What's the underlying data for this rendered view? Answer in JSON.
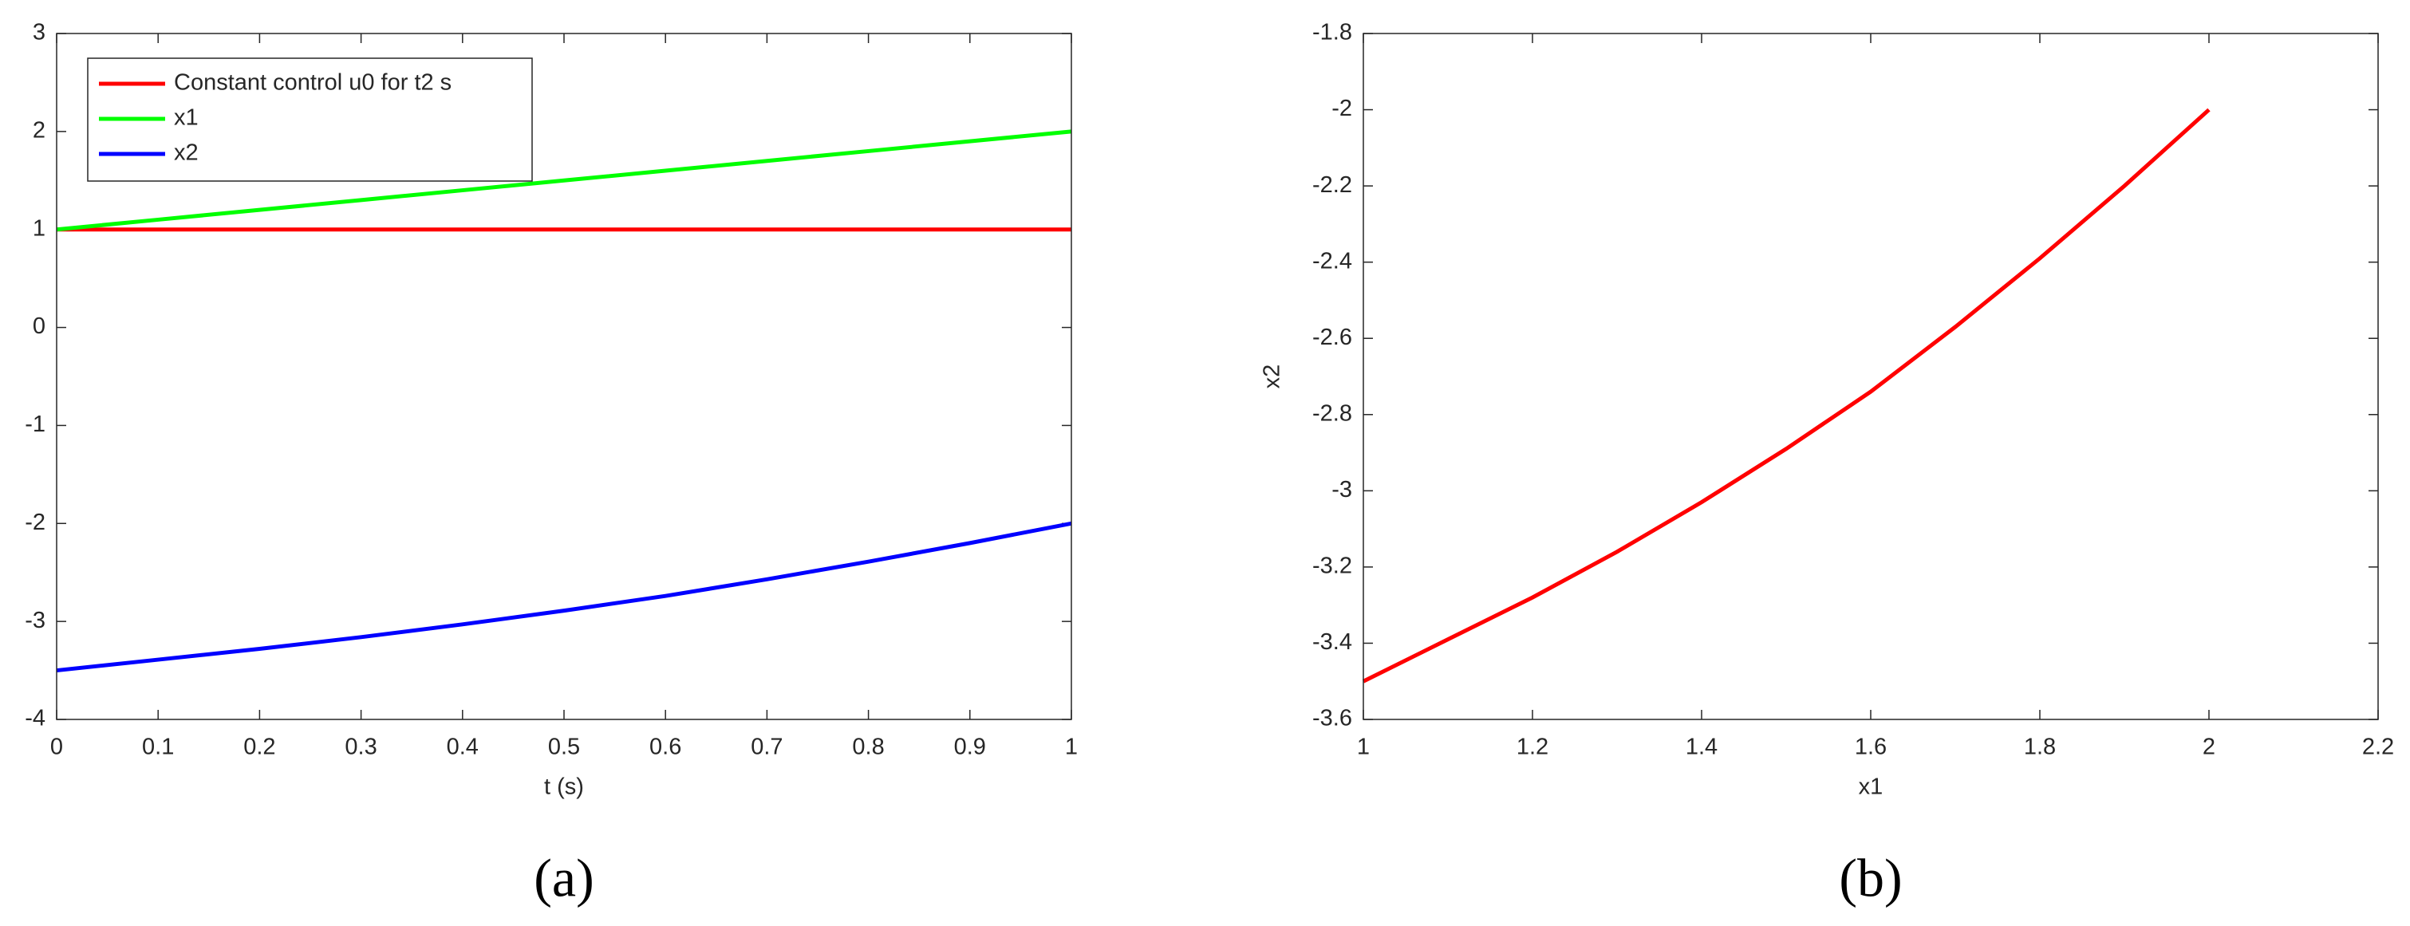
{
  "chart_data": [
    {
      "type": "line",
      "caption": "(a)",
      "xlabel": "t (s)",
      "x": [
        0,
        0.1,
        0.2,
        0.3,
        0.4,
        0.5,
        0.6,
        0.7,
        0.8,
        0.9,
        1
      ],
      "series": [
        {
          "name": "Constant control u0 for t2 s",
          "color": "#ff0000",
          "values": [
            1,
            1,
            1,
            1,
            1,
            1,
            1,
            1,
            1,
            1,
            1
          ]
        },
        {
          "name": "x1",
          "color": "#00ff00",
          "values": [
            1,
            1.1,
            1.2,
            1.3,
            1.4,
            1.5,
            1.6,
            1.7,
            1.8,
            1.9,
            2
          ]
        },
        {
          "name": "x2",
          "color": "#0000ff",
          "values": [
            -3.5,
            -3.39,
            -3.28,
            -3.16,
            -3.03,
            -2.89,
            -2.74,
            -2.57,
            -2.39,
            -2.2,
            -2
          ]
        }
      ],
      "xlim": [
        0,
        1
      ],
      "xticks": [
        0,
        0.1,
        0.2,
        0.3,
        0.4,
        0.5,
        0.6,
        0.7,
        0.8,
        0.9,
        1
      ],
      "ylim": [
        -4,
        3
      ],
      "yticks": [
        -4,
        -3,
        -2,
        -1,
        0,
        1,
        2,
        3
      ],
      "legend": "upper left"
    },
    {
      "type": "line",
      "caption": "(b)",
      "xlabel": "x1",
      "ylabel": "x2",
      "x": [
        1,
        1.1,
        1.2,
        1.3,
        1.4,
        1.5,
        1.6,
        1.7,
        1.8,
        1.9,
        2
      ],
      "series": [
        {
          "color": "#ff0000",
          "values": [
            -3.5,
            -3.39,
            -3.28,
            -3.16,
            -3.03,
            -2.89,
            -2.74,
            -2.57,
            -2.39,
            -2.2,
            -2
          ]
        }
      ],
      "xlim": [
        1,
        2.2
      ],
      "xticks": [
        1,
        1.2,
        1.4,
        1.6,
        1.8,
        2,
        2.2
      ],
      "ylim": [
        -3.6,
        -1.8
      ],
      "yticks": [
        -3.6,
        -3.4,
        -3.2,
        -3,
        -2.8,
        -2.6,
        -2.4,
        -2.2,
        -2,
        -1.8
      ]
    }
  ]
}
